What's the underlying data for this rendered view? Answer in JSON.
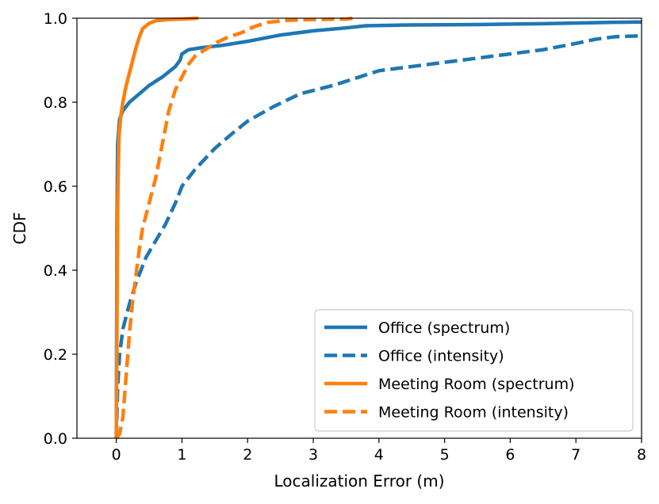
{
  "chart_data": {
    "type": "line",
    "xlabel": "Localization Error (m)",
    "ylabel": "CDF",
    "xlim": [
      -0.6,
      8
    ],
    "ylim": [
      0,
      1
    ],
    "xticks": [
      0,
      1,
      2,
      3,
      4,
      5,
      6,
      7,
      8
    ],
    "yticks": [
      0.0,
      0.2,
      0.4,
      0.6,
      0.8,
      1.0
    ],
    "xtick_labels": [
      "0",
      "1",
      "2",
      "3",
      "4",
      "5",
      "6",
      "7",
      "8"
    ],
    "ytick_labels": [
      "0.0",
      "0.2",
      "0.4",
      "0.6",
      "0.8",
      "1.0"
    ],
    "grid": false,
    "legend_position": "lower-right",
    "series": [
      {
        "name": "Office (spectrum)",
        "color": "#1f77b4",
        "style": "solid",
        "points": [
          [
            0,
            0
          ],
          [
            0.01,
            0.5
          ],
          [
            0.02,
            0.7
          ],
          [
            0.05,
            0.76
          ],
          [
            0.1,
            0.78
          ],
          [
            0.2,
            0.8
          ],
          [
            0.35,
            0.82
          ],
          [
            0.5,
            0.84
          ],
          [
            0.7,
            0.86
          ],
          [
            0.9,
            0.885
          ],
          [
            0.97,
            0.9
          ],
          [
            1.0,
            0.915
          ],
          [
            1.1,
            0.925
          ],
          [
            1.3,
            0.93
          ],
          [
            1.6,
            0.935
          ],
          [
            2.0,
            0.945
          ],
          [
            2.5,
            0.96
          ],
          [
            3.0,
            0.97
          ],
          [
            3.5,
            0.977
          ],
          [
            3.8,
            0.982
          ],
          [
            4.5,
            0.984
          ],
          [
            5.5,
            0.985
          ],
          [
            6.5,
            0.987
          ],
          [
            7.5,
            0.99
          ],
          [
            8.0,
            0.991
          ]
        ]
      },
      {
        "name": "Office (intensity)",
        "color": "#1f77b4",
        "style": "dashed",
        "points": [
          [
            0,
            0
          ],
          [
            0.02,
            0.12
          ],
          [
            0.05,
            0.2
          ],
          [
            0.1,
            0.26
          ],
          [
            0.2,
            0.32
          ],
          [
            0.3,
            0.37
          ],
          [
            0.45,
            0.43
          ],
          [
            0.6,
            0.47
          ],
          [
            0.75,
            0.51
          ],
          [
            0.9,
            0.56
          ],
          [
            1.0,
            0.6
          ],
          [
            1.2,
            0.64
          ],
          [
            1.5,
            0.69
          ],
          [
            1.8,
            0.73
          ],
          [
            2.0,
            0.755
          ],
          [
            2.4,
            0.79
          ],
          [
            2.8,
            0.82
          ],
          [
            3.3,
            0.84
          ],
          [
            3.7,
            0.86
          ],
          [
            4.0,
            0.875
          ],
          [
            4.5,
            0.885
          ],
          [
            5.0,
            0.895
          ],
          [
            5.5,
            0.905
          ],
          [
            6.0,
            0.915
          ],
          [
            6.5,
            0.925
          ],
          [
            7.0,
            0.94
          ],
          [
            7.3,
            0.95
          ],
          [
            7.6,
            0.956
          ],
          [
            8.0,
            0.958
          ]
        ]
      },
      {
        "name": "Meeting Room (spectrum)",
        "color": "#ff7f0e",
        "style": "solid",
        "points": [
          [
            0,
            0
          ],
          [
            0.01,
            0.3
          ],
          [
            0.02,
            0.55
          ],
          [
            0.04,
            0.72
          ],
          [
            0.07,
            0.77
          ],
          [
            0.1,
            0.8
          ],
          [
            0.15,
            0.84
          ],
          [
            0.2,
            0.87
          ],
          [
            0.25,
            0.9
          ],
          [
            0.3,
            0.93
          ],
          [
            0.35,
            0.955
          ],
          [
            0.4,
            0.975
          ],
          [
            0.5,
            0.988
          ],
          [
            0.6,
            0.994
          ],
          [
            0.8,
            0.997
          ],
          [
            1.0,
            0.998
          ],
          [
            1.25,
            1.0
          ]
        ]
      },
      {
        "name": "Meeting Room (intensity)",
        "color": "#ff7f0e",
        "style": "dashed",
        "points": [
          [
            0,
            0
          ],
          [
            0.05,
            0.01
          ],
          [
            0.1,
            0.05
          ],
          [
            0.15,
            0.15
          ],
          [
            0.2,
            0.25
          ],
          [
            0.25,
            0.33
          ],
          [
            0.3,
            0.39
          ],
          [
            0.35,
            0.45
          ],
          [
            0.4,
            0.5
          ],
          [
            0.5,
            0.56
          ],
          [
            0.6,
            0.62
          ],
          [
            0.7,
            0.7
          ],
          [
            0.8,
            0.78
          ],
          [
            0.9,
            0.83
          ],
          [
            1.0,
            0.86
          ],
          [
            1.1,
            0.89
          ],
          [
            1.2,
            0.91
          ],
          [
            1.35,
            0.925
          ],
          [
            1.5,
            0.94
          ],
          [
            1.7,
            0.955
          ],
          [
            1.9,
            0.965
          ],
          [
            2.1,
            0.98
          ],
          [
            2.3,
            0.99
          ],
          [
            2.6,
            0.995
          ],
          [
            3.0,
            0.997
          ],
          [
            3.5,
            0.998
          ],
          [
            3.6,
            1.0
          ]
        ]
      }
    ]
  }
}
